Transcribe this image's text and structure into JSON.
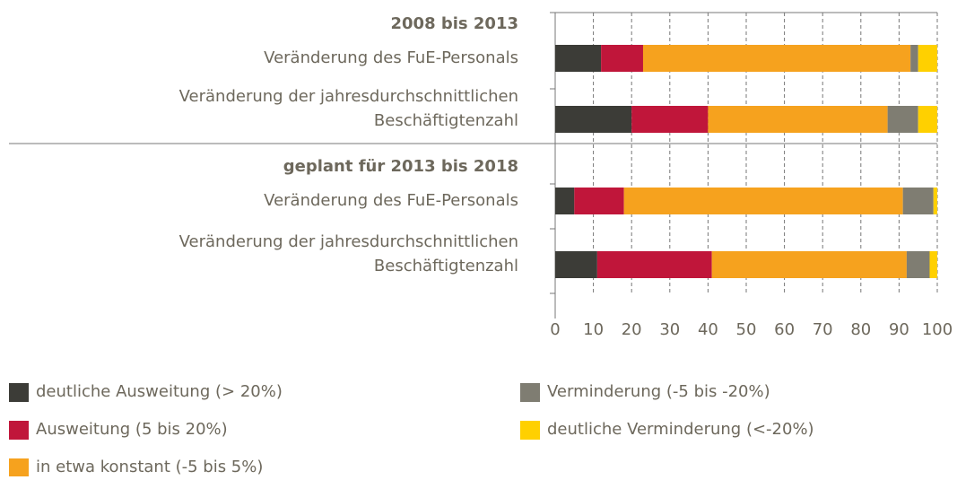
{
  "chart_data": {
    "type": "stacked-barh",
    "categories": [
      "2008 bis 2013",
      "Veränderung des FuE-Personals",
      "Veränderung der jahresdurchschnittlichen\nBeschäftigtenzahl",
      "geplant für 2013 bis 2018",
      "Veränderung des FuE-Personals",
      "Veränderung der jahresdurchschnittlichen\nBeschäftigtenzahl"
    ],
    "series": [
      {
        "name": "deutliche Ausweitung (> 20%)",
        "color": "#3c3c37",
        "values": [
          null,
          12,
          20,
          null,
          5,
          11
        ]
      },
      {
        "name": "Ausweitung  (5 bis 20%)",
        "color": "#c0163a",
        "values": [
          null,
          11,
          20,
          null,
          13,
          30
        ]
      },
      {
        "name": "in etwa konstant (-5 bis 5%)",
        "color": "#f6a21e",
        "values": [
          null,
          70,
          47,
          null,
          73,
          51
        ]
      },
      {
        "name": "Verminderung (-5 bis -20%)",
        "color": "#7f7d72",
        "values": [
          null,
          2,
          8,
          null,
          8,
          6
        ]
      },
      {
        "name": "deutliche Verminderung (<-20%)",
        "color": "#ffd000",
        "values": [
          null,
          5,
          5,
          null,
          1,
          2
        ]
      }
    ],
    "xlim": [
      0,
      100
    ],
    "xticks": [
      0,
      10,
      20,
      30,
      40,
      50,
      60,
      70,
      80,
      90,
      100
    ],
    "grid": true
  }
}
